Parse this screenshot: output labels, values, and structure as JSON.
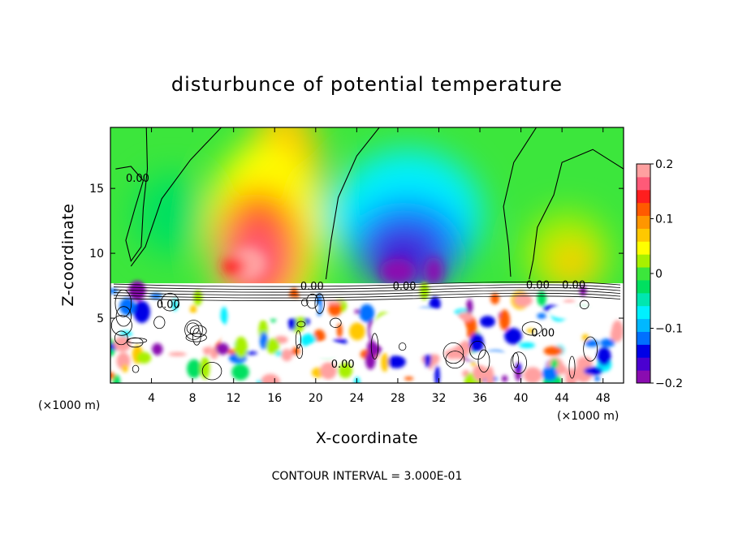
{
  "chart_data": {
    "type": "heatmap",
    "title": "disturbunce of potential temperature",
    "xlabel": "X-coordinate",
    "ylabel": "Z-coordinate",
    "x_unit": "(×1000 m)",
    "y_unit": "(×1000 m)",
    "xlim": [
      0,
      50
    ],
    "ylim": [
      0,
      19.7
    ],
    "x_ticks": [
      4,
      8,
      12,
      16,
      20,
      24,
      28,
      32,
      36,
      40,
      44,
      48
    ],
    "y_ticks": [
      5,
      10,
      15
    ],
    "colorbar": {
      "min": -0.2,
      "max": 0.2,
      "ticks": [
        0.2,
        0.1,
        0,
        -0.1,
        -0.2
      ],
      "tick_labels": [
        "0.2",
        "0.1",
        "0",
        "−0.1",
        "−0.2"
      ]
    },
    "features": [
      {
        "type": "warm-anomaly",
        "x": 14.5,
        "z": 10.5,
        "value": 0.2
      },
      {
        "type": "cold-anomaly",
        "x": 29,
        "z": 10,
        "value": -0.2
      },
      {
        "type": "warm-anomaly",
        "x": 45,
        "z": 9.5,
        "value": 0.1
      },
      {
        "type": "boundary-layer",
        "z_top": 7.5
      }
    ],
    "contour_labels": [
      {
        "text": "0.00",
        "x": 1.5,
        "z": 15.5
      },
      {
        "text": "0.00",
        "x": 18.5,
        "z": 7.2
      },
      {
        "text": "0.00",
        "x": 27.5,
        "z": 7.2
      },
      {
        "text": "0.00",
        "x": 40.5,
        "z": 7.3
      },
      {
        "text": "0.00",
        "x": 44,
        "z": 7.3
      },
      {
        "text": "0.00",
        "x": 4.5,
        "z": 5.8
      },
      {
        "text": "0.00",
        "x": 21.5,
        "z": 1.2
      },
      {
        "text": "0.00",
        "x": 41,
        "z": 3.6
      }
    ],
    "footnote": "CONTOUR INTERVAL = 3.000E-01"
  },
  "colors": {
    "palette": [
      "#8a0cb0",
      "#4a00d0",
      "#0000e6",
      "#0070ff",
      "#00b8ff",
      "#00f0ff",
      "#00e6b0",
      "#00e060",
      "#3ce63c",
      "#a8f000",
      "#ffff00",
      "#ffc800",
      "#ff9600",
      "#ff5a00",
      "#ff1e1e",
      "#ff5a78",
      "#ffa0a0"
    ],
    "background": "#ffffff",
    "frame": "#000000"
  }
}
